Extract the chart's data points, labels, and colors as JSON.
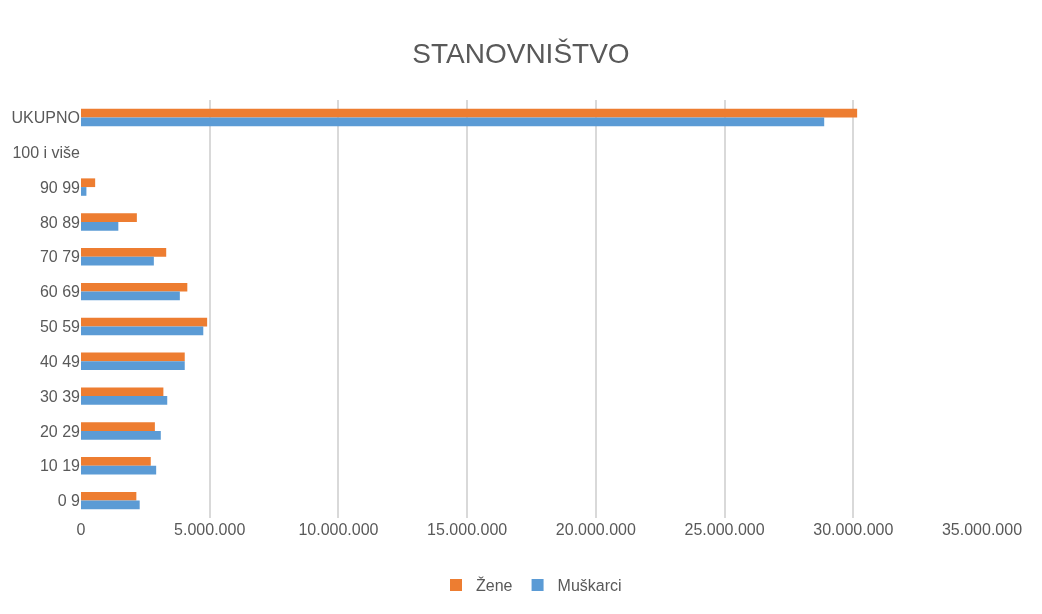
{
  "chart_data": {
    "type": "bar",
    "orientation": "horizontal",
    "title": "STANOVNIŠTVO",
    "categories": [
      "UKUPNO",
      "100 i više",
      "90 99",
      "80 89",
      "70 79",
      "60 69",
      "50 59",
      "40 49",
      "30 39",
      "20 29",
      "10 19",
      "0 9"
    ],
    "series": [
      {
        "name": "Žene",
        "color": "#ed7d31",
        "values": [
          30150000,
          0,
          550000,
          2170000,
          3310000,
          4130000,
          4900000,
          4030000,
          3200000,
          2870000,
          2710000,
          2150000
        ]
      },
      {
        "name": "Muškarci",
        "color": "#5b9bd5",
        "values": [
          28870000,
          0,
          210000,
          1450000,
          2830000,
          3840000,
          4750000,
          4030000,
          3350000,
          3100000,
          2920000,
          2280000
        ]
      }
    ],
    "xlim": [
      0,
      35000000
    ],
    "xticks": [
      0,
      {
        "value": 5000000,
        "label": "5.000.000"
      },
      {
        "value": 10000000,
        "label": "10.000.000"
      },
      {
        "value": 15000000,
        "label": "15.000.000"
      },
      {
        "value": 20000000,
        "label": "20.000.000"
      },
      {
        "value": 25000000,
        "label": "25.000.000"
      },
      {
        "value": 30000000,
        "label": "30.000.000"
      },
      {
        "value": 35000000,
        "label": "35.000.000"
      }
    ],
    "grid": "x",
    "legend": "bottom"
  }
}
